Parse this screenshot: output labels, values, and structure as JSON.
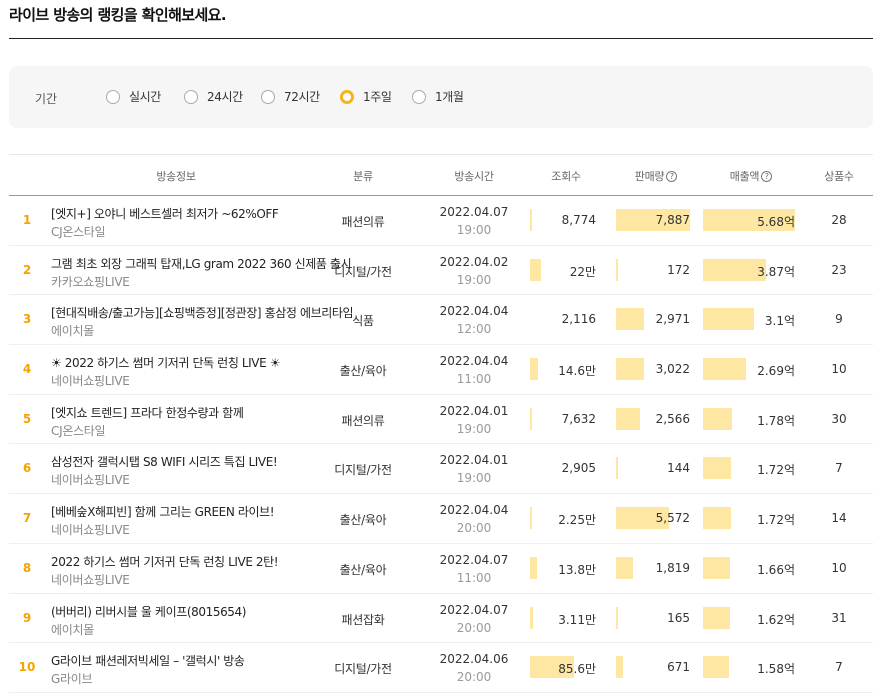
{
  "page_title": "라이브 방송의 랭킹을 확인해보세요.",
  "filter": {
    "label": "기간",
    "options": [
      {
        "label": "실시간",
        "selected": false
      },
      {
        "label": "24시간",
        "selected": false
      },
      {
        "label": "72시간",
        "selected": false
      },
      {
        "label": "1주일",
        "selected": true
      },
      {
        "label": "1개월",
        "selected": false
      }
    ]
  },
  "colors": {
    "accent": "#f5b41a",
    "rank": "#f5a300",
    "bar": "#fde7a2"
  },
  "table": {
    "headers": {
      "info": "방송정보",
      "category": "분류",
      "time": "방송시간",
      "views": "조회수",
      "sales": "판매량",
      "revenue": "매출액",
      "goods": "상품수",
      "help_icon": "?"
    },
    "rows": [
      {
        "rank": "1",
        "title": "[엣지+] 오야니 베스트셀러 최저가 ~62%OFF",
        "channel": "CJ온스타일",
        "category": "패션의류",
        "date": "2022.04.07",
        "time": "19:00",
        "views": "8,774",
        "views_ratio": 0.01,
        "sales": "7,887",
        "sales_ratio": 1.0,
        "revenue": "5.68억",
        "revenue_ratio": 1.0,
        "goods": "28"
      },
      {
        "rank": "2",
        "title": "그램 최초 외장 그래픽 탑재,LG gram 2022 360 신제품 출시",
        "channel": "카카오쇼핑LIVE",
        "category": "디지털/가전",
        "date": "2022.04.02",
        "time": "19:00",
        "views": "22만",
        "views_ratio": 0.17,
        "sales": "172",
        "sales_ratio": 0.02,
        "revenue": "3.87억",
        "revenue_ratio": 0.68,
        "goods": "23"
      },
      {
        "rank": "3",
        "title": "[현대직배송/출고가능][쇼핑백증정][정관장] 홍삼정 에브리타임",
        "channel": "에이치몰",
        "category": "식품",
        "date": "2022.04.04",
        "time": "12:00",
        "views": "2,116",
        "views_ratio": 0.0,
        "sales": "2,971",
        "sales_ratio": 0.38,
        "revenue": "3.1억",
        "revenue_ratio": 0.55,
        "goods": "9"
      },
      {
        "rank": "4",
        "title": "☀ 2022 하기스 썸머 기저귀 단독 런칭 LIVE ☀",
        "channel": "네이버쇼핑LIVE",
        "category": "출산/육아",
        "date": "2022.04.04",
        "time": "11:00",
        "views": "14.6만",
        "views_ratio": 0.12,
        "sales": "3,022",
        "sales_ratio": 0.38,
        "revenue": "2.69억",
        "revenue_ratio": 0.47,
        "goods": "10"
      },
      {
        "rank": "5",
        "title": "[엣지쇼 트렌드] 프라다 한정수량과 함께",
        "channel": "CJ온스타일",
        "category": "패션의류",
        "date": "2022.04.01",
        "time": "19:00",
        "views": "7,632",
        "views_ratio": 0.01,
        "sales": "2,566",
        "sales_ratio": 0.33,
        "revenue": "1.78억",
        "revenue_ratio": 0.31,
        "goods": "30"
      },
      {
        "rank": "6",
        "title": "삼성전자 갤럭시탭 S8 WIFI 시리즈 특집 LIVE!",
        "channel": "네이버쇼핑LIVE",
        "category": "디지털/가전",
        "date": "2022.04.01",
        "time": "19:00",
        "views": "2,905",
        "views_ratio": 0.0,
        "sales": "144",
        "sales_ratio": 0.02,
        "revenue": "1.72억",
        "revenue_ratio": 0.3,
        "goods": "7"
      },
      {
        "rank": "7",
        "title": "[베베숲X해피빈] 함께 그리는 GREEN 라이브!",
        "channel": "네이버쇼핑LIVE",
        "category": "출산/육아",
        "date": "2022.04.04",
        "time": "20:00",
        "views": "2.25만",
        "views_ratio": 0.03,
        "sales": "5,572",
        "sales_ratio": 0.71,
        "revenue": "1.72억",
        "revenue_ratio": 0.3,
        "goods": "14"
      },
      {
        "rank": "8",
        "title": "2022 하기스 썸머 기저귀 단독 런칭 LIVE 2탄!",
        "channel": "네이버쇼핑LIVE",
        "category": "출산/육아",
        "date": "2022.04.07",
        "time": "11:00",
        "views": "13.8만",
        "views_ratio": 0.11,
        "sales": "1,819",
        "sales_ratio": 0.23,
        "revenue": "1.66억",
        "revenue_ratio": 0.29,
        "goods": "10"
      },
      {
        "rank": "9",
        "title": "(버버리) 리버시블 울 케이프(8015654)",
        "channel": "에이치몰",
        "category": "패션잡화",
        "date": "2022.04.07",
        "time": "20:00",
        "views": "3.11만",
        "views_ratio": 0.04,
        "sales": "165",
        "sales_ratio": 0.02,
        "revenue": "1.62억",
        "revenue_ratio": 0.29,
        "goods": "31"
      },
      {
        "rank": "10",
        "title": "G라이브 패션레저빅세일 – '갤럭시' 방송",
        "channel": "G라이브",
        "category": "디지털/가전",
        "date": "2022.04.06",
        "time": "20:00",
        "views": "85.6만",
        "views_ratio": 0.66,
        "sales": "671",
        "sales_ratio": 0.09,
        "revenue": "1.58억",
        "revenue_ratio": 0.28,
        "goods": "7"
      }
    ]
  }
}
